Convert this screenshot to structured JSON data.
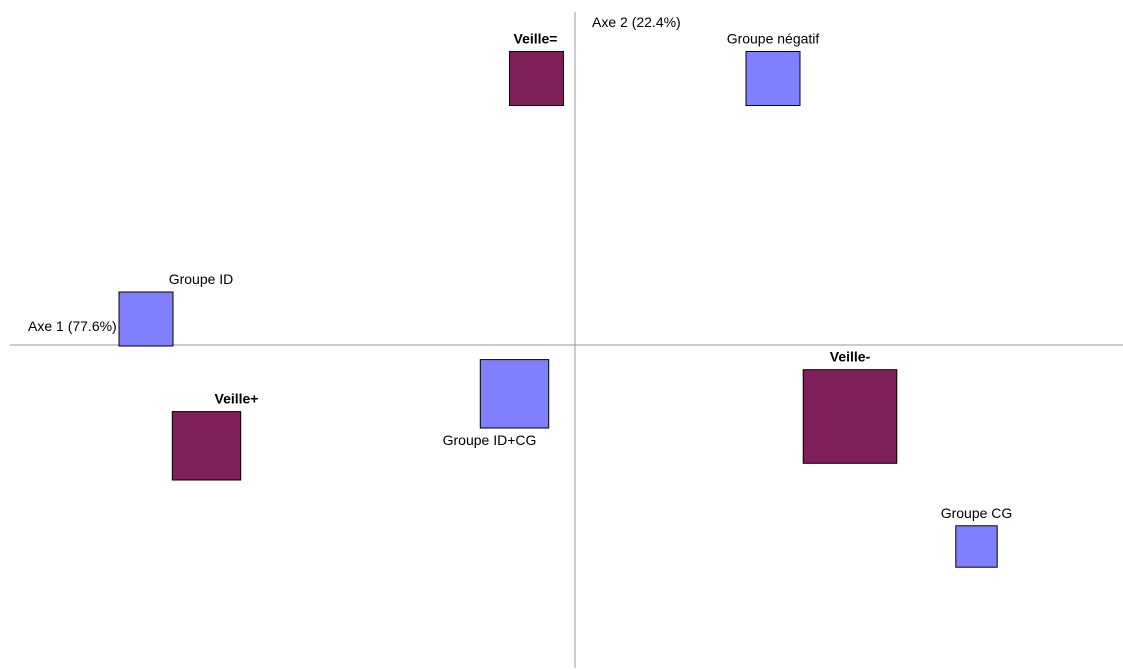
{
  "chart_data": {
    "type": "scatter",
    "title": "",
    "xlabel": "Axe 1 (77.6%)",
    "ylabel": "Axe 2 (22.4%)",
    "xlim": [
      -1,
      1
    ],
    "ylim": [
      -1,
      1
    ],
    "grid": false,
    "legend": "none",
    "series": [
      {
        "kind": "group",
        "color": "#8080ff",
        "points": [
          {
            "label": "Groupe négatif",
            "x": 0.36,
            "y": 0.82,
            "weight": 3
          },
          {
            "label": "Groupe ID",
            "x": -0.78,
            "y": 0.08,
            "weight": 3
          },
          {
            "label": "Groupe ID+CG",
            "x": -0.11,
            "y": -0.15,
            "weight": 3.8
          },
          {
            "label": "Groupe CG",
            "x": 0.73,
            "y": -0.62,
            "weight": 2.3
          }
        ]
      },
      {
        "kind": "veille",
        "color": "#7f1f5a",
        "points": [
          {
            "label": "Veille=",
            "x": -0.07,
            "y": 0.82,
            "weight": 3
          },
          {
            "label": "Veille+",
            "x": -0.67,
            "y": -0.31,
            "weight": 3.8
          },
          {
            "label": "Veille-",
            "x": 0.5,
            "y": -0.22,
            "weight": 5.2
          }
        ]
      }
    ]
  }
}
